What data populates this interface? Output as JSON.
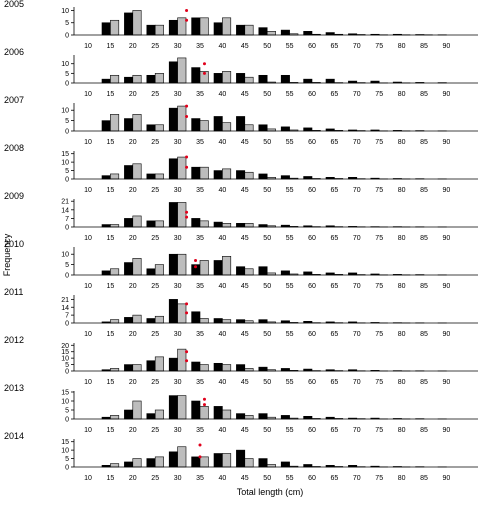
{
  "chart_data": {
    "type": "bar",
    "xlabel": "Total length (cm)",
    "ylabel": "Frequency",
    "categories": [
      "10",
      "15",
      "20",
      "25",
      "30",
      "35",
      "40",
      "45",
      "50",
      "55",
      "60",
      "65",
      "70",
      "75",
      "80",
      "85",
      "90"
    ],
    "colors": {
      "series_a": "#000000",
      "series_b": "#bdbdbd",
      "marker": "#e0001b"
    },
    "panels": [
      {
        "year": "2005",
        "ylim": [
          0,
          11
        ],
        "yticks": [
          0,
          5,
          10
        ],
        "series": [
          {
            "values": [
              0,
              5,
              9,
              4,
              6,
              7,
              5,
              4,
              3,
              2,
              1.5,
              1,
              0.5,
              0.3,
              0.3,
              0.2,
              0.1
            ]
          },
          {
            "values": [
              0,
              6,
              10,
              4,
              7,
              7,
              7,
              4,
              1.5,
              0.5,
              0.3,
              0.3,
              0.2,
              0.1,
              0.1,
              0.1,
              0
            ]
          }
        ],
        "markers": [
          {
            "x": 32,
            "y": 10
          },
          {
            "x": 32,
            "y": 6
          }
        ]
      },
      {
        "year": "2006",
        "ylim": [
          0,
          14
        ],
        "yticks": [
          0,
          5,
          10
        ],
        "series": [
          {
            "values": [
              0,
              2,
              3,
              4,
              11,
              8,
              5,
              5,
              4,
              4,
              2,
              2,
              1,
              1,
              0.5,
              0.3,
              0.2
            ]
          },
          {
            "values": [
              0,
              4,
              4,
              5,
              13,
              6,
              6,
              3,
              0.5,
              0.3,
              0.3,
              0.2,
              0.2,
              0.1,
              0.1,
              0,
              0
            ]
          }
        ],
        "markers": [
          {
            "x": 36,
            "y": 10
          },
          {
            "x": 36,
            "y": 5
          }
        ]
      },
      {
        "year": "2007",
        "ylim": [
          0,
          13
        ],
        "yticks": [
          0,
          5,
          10
        ],
        "series": [
          {
            "values": [
              0,
              5,
              6,
              3,
              11,
              6,
              7,
              7,
              3,
              2,
              1.5,
              1,
              0.5,
              0.5,
              0.3,
              0.2,
              0.1
            ]
          },
          {
            "values": [
              0,
              8,
              8,
              3,
              12,
              5,
              4,
              3,
              1,
              0.5,
              0.3,
              0.3,
              0.2,
              0.1,
              0.1,
              0,
              0
            ]
          }
        ],
        "markers": [
          {
            "x": 32,
            "y": 12
          },
          {
            "x": 32,
            "y": 7
          }
        ]
      },
      {
        "year": "2008",
        "ylim": [
          0,
          16
        ],
        "yticks": [
          0,
          5,
          10,
          15
        ],
        "series": [
          {
            "values": [
              0,
              2,
              8,
              3,
              12,
              7,
              5,
              5,
              3,
              2,
              1.5,
              1,
              1,
              0.5,
              0.3,
              0.2,
              0.1
            ]
          },
          {
            "values": [
              0,
              3,
              9,
              3,
              13,
              7,
              6,
              4,
              1,
              0.5,
              0.3,
              0.3,
              0.2,
              0.1,
              0.1,
              0,
              0
            ]
          }
        ],
        "markers": [
          {
            "x": 32,
            "y": 13
          },
          {
            "x": 32,
            "y": 7
          }
        ]
      },
      {
        "year": "2009",
        "ylim": [
          0,
          22
        ],
        "yticks": [
          0,
          7,
          14,
          21
        ],
        "series": [
          {
            "values": [
              0,
              2,
              7,
              5,
              20,
              7,
              4,
              3,
              2,
              1.5,
              1,
              1,
              0.5,
              0.3,
              0.3,
              0.2,
              0.1
            ]
          },
          {
            "values": [
              0,
              2,
              9,
              5,
              20,
              5,
              3,
              3,
              1,
              0.5,
              0.3,
              0.3,
              0.2,
              0.1,
              0.1,
              0,
              0
            ]
          }
        ],
        "markers": [
          {
            "x": 32,
            "y": 12
          },
          {
            "x": 32,
            "y": 8
          }
        ]
      },
      {
        "year": "2010",
        "ylim": [
          0,
          13
        ],
        "yticks": [
          0,
          5,
          10
        ],
        "series": [
          {
            "values": [
              0,
              2,
              6,
              3,
              10,
              5,
              7,
              4,
              4,
              2,
              1.5,
              1,
              1,
              0.5,
              0.3,
              0.2,
              0.1
            ]
          },
          {
            "values": [
              0,
              3,
              8,
              5,
              10,
              7,
              9,
              3,
              1,
              0.5,
              0.3,
              0.3,
              0.2,
              0.1,
              0.1,
              0,
              0
            ]
          }
        ],
        "markers": [
          {
            "x": 34,
            "y": 7
          },
          {
            "x": 34,
            "y": 4
          }
        ]
      },
      {
        "year": "2011",
        "ylim": [
          0,
          24
        ],
        "yticks": [
          0,
          7,
          14,
          21
        ],
        "series": [
          {
            "values": [
              0,
              1,
              5,
              4,
              21,
              10,
              4,
              3,
              3,
              2,
              1.5,
              1,
              1,
              0.5,
              0.3,
              0.2,
              0.1
            ]
          },
          {
            "values": [
              0,
              3,
              7,
              6,
              17,
              4,
              3,
              2,
              1,
              0.5,
              0.3,
              0.3,
              0.2,
              0.1,
              0.1,
              0,
              0
            ]
          }
        ],
        "markers": [
          {
            "x": 32,
            "y": 17
          },
          {
            "x": 32,
            "y": 9
          }
        ]
      },
      {
        "year": "2012",
        "ylim": [
          0,
          21
        ],
        "yticks": [
          0,
          5,
          10,
          15,
          20
        ],
        "series": [
          {
            "values": [
              0,
              1,
              5,
              8,
              10,
              7,
              6,
              5,
              3,
              2,
              1.5,
              1,
              1,
              0.5,
              0.3,
              0.2,
              0.1
            ]
          },
          {
            "values": [
              0,
              2,
              5,
              11,
              17,
              5,
              5,
              2,
              1,
              0.5,
              0.3,
              0.3,
              0.2,
              0.1,
              0.1,
              0,
              0
            ]
          }
        ],
        "markers": [
          {
            "x": 32,
            "y": 15
          },
          {
            "x": 32,
            "y": 8
          }
        ]
      },
      {
        "year": "2013",
        "ylim": [
          0,
          15
        ],
        "yticks": [
          0,
          5,
          10,
          15
        ],
        "series": [
          {
            "values": [
              0,
              1,
              5,
              3,
              13,
              10,
              7,
              3,
              3,
              2,
              1.5,
              1,
              0.5,
              0.5,
              0.3,
              0.2,
              0.1
            ]
          },
          {
            "values": [
              0,
              2,
              10,
              5,
              13,
              7,
              5,
              2,
              1,
              0.5,
              0.3,
              0.3,
              0.2,
              0.1,
              0.1,
              0,
              0
            ]
          }
        ],
        "markers": [
          {
            "x": 36,
            "y": 11
          },
          {
            "x": 36,
            "y": 8
          }
        ]
      },
      {
        "year": "2014",
        "ylim": [
          0,
          16
        ],
        "yticks": [
          0,
          5,
          10,
          15
        ],
        "series": [
          {
            "values": [
              0,
              1,
              3,
              5,
              9,
              6,
              8,
              10,
              5,
              3,
              1.5,
              1,
              1,
              0.5,
              0.3,
              0.2,
              0.1
            ]
          },
          {
            "values": [
              0,
              2,
              5,
              6,
              12,
              6,
              8,
              5,
              1.5,
              0.5,
              0.3,
              0.3,
              0.2,
              0.1,
              0.1,
              0,
              0
            ]
          }
        ],
        "markers": [
          {
            "x": 35,
            "y": 13
          },
          {
            "x": 35,
            "y": 6
          }
        ]
      }
    ]
  }
}
